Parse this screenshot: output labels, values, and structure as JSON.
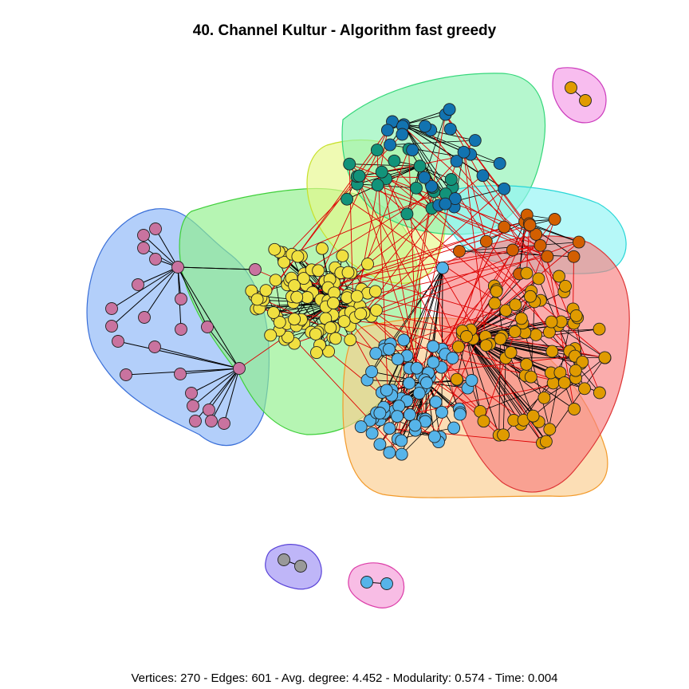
{
  "title": "40. Channel Kultur - Algorithm fast greedy",
  "stats": {
    "text": "Vertices: 270 - Edges: 601 - Avg. degree: 4.452 - Modularity: 0.574 - Time: 0.004"
  },
  "colors": {
    "pink": "#c9739f",
    "yellow": "#f0e040",
    "teal": "#12937a",
    "blue_dark": "#1273b0",
    "sky": "#56b4e9",
    "orange": "#e09b00",
    "vermilion": "#d35f00",
    "gray": "#999999",
    "edge_intra": "#000000",
    "edge_inter": "#dd0000"
  },
  "communities": [
    {
      "name": "blue-pink-cluster",
      "fill": "#8bb5f7",
      "stroke": "#3a6fd8"
    },
    {
      "name": "green-yellow-cluster",
      "fill": "#8ff08a",
      "stroke": "#3fcf3a"
    },
    {
      "name": "lime-cluster",
      "fill": "#e6f88a",
      "stroke": "#c7e02a"
    },
    {
      "name": "mint-cluster",
      "fill": "#8ef2b4",
      "stroke": "#35d77a"
    },
    {
      "name": "cyan-cluster",
      "fill": "#8ff4f4",
      "stroke": "#28d6d6"
    },
    {
      "name": "peach-cluster",
      "fill": "#fbcc8e",
      "stroke": "#f29a2a"
    },
    {
      "name": "red-cluster",
      "fill": "#f77f7f",
      "stroke": "#de3535"
    },
    {
      "name": "magenta-pair",
      "fill": "#f49ae6",
      "stroke": "#cc3cbd"
    },
    {
      "name": "purple-pair",
      "fill": "#9d8ff4",
      "stroke": "#5a44d8"
    },
    {
      "name": "pink-pair",
      "fill": "#f59ad7",
      "stroke": "#dc3ca8"
    }
  ]
}
